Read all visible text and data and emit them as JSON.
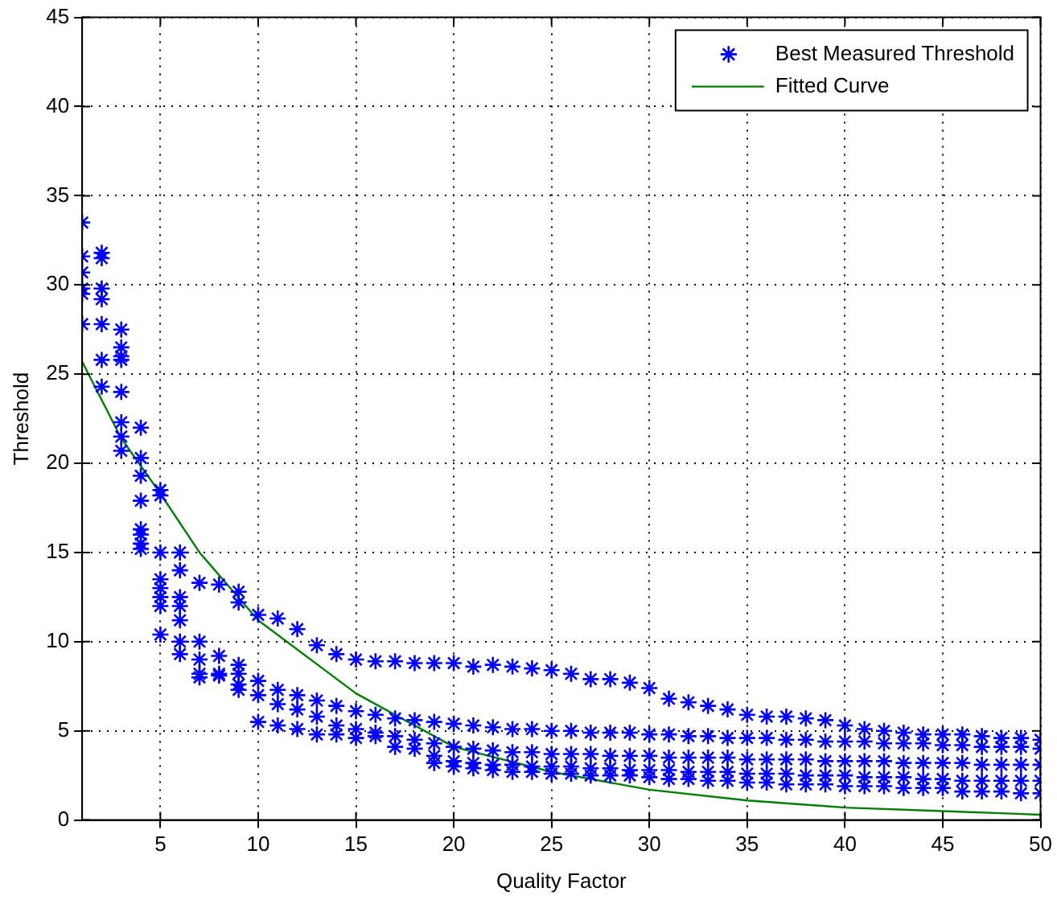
{
  "chart_data": {
    "type": "scatter",
    "xlabel": "Quality Factor",
    "ylabel": "Threshold",
    "xlim": [
      1,
      50
    ],
    "ylim": [
      0,
      45
    ],
    "xticks": [
      5,
      10,
      15,
      20,
      25,
      30,
      35,
      40,
      45,
      50
    ],
    "yticks": [
      0,
      5,
      10,
      15,
      20,
      25,
      30,
      35,
      40,
      45
    ],
    "grid": true,
    "legend": "top right",
    "series": [
      {
        "name": "Best Measured Threshold",
        "type": "scatter",
        "color": "#0000ff",
        "marker": "cross",
        "x": [
          1,
          1,
          1,
          1,
          1,
          1,
          2,
          2,
          2,
          2,
          2,
          2,
          2,
          3,
          3,
          3,
          3,
          3,
          3,
          3,
          3,
          4,
          4,
          4,
          4,
          4,
          4,
          4,
          4,
          5,
          5,
          5,
          5,
          5,
          5,
          5,
          5,
          6,
          6,
          6,
          6,
          6,
          6,
          6,
          7,
          7,
          7,
          7,
          7,
          8,
          8,
          8,
          8,
          9,
          9,
          9,
          9,
          9,
          9,
          10,
          11,
          12,
          13,
          14,
          15,
          16,
          17,
          18,
          19,
          20,
          21,
          22,
          23,
          24,
          25,
          26,
          27,
          28,
          29,
          30,
          31,
          32,
          33,
          34,
          35,
          36,
          37,
          38,
          39,
          40,
          41,
          42,
          43,
          44,
          45,
          46,
          47,
          48,
          49,
          50,
          10,
          11,
          12,
          13,
          14,
          15,
          16,
          17,
          18,
          19,
          20,
          21,
          22,
          23,
          24,
          25,
          26,
          27,
          28,
          29,
          30,
          31,
          32,
          33,
          34,
          35,
          36,
          37,
          38,
          39,
          40,
          41,
          42,
          43,
          44,
          45,
          46,
          47,
          48,
          49,
          50,
          10,
          11,
          12,
          13,
          14,
          15,
          16,
          17,
          18,
          19,
          20,
          21,
          22,
          23,
          24,
          25,
          26,
          27,
          28,
          29,
          30,
          31,
          32,
          33,
          34,
          35,
          36,
          37,
          38,
          39,
          40,
          41,
          42,
          43,
          44,
          45,
          46,
          47,
          48,
          49,
          50,
          10,
          11,
          12,
          13,
          14,
          15,
          16,
          17,
          18,
          19,
          20,
          21,
          22,
          23,
          24,
          25,
          26,
          27,
          28,
          29,
          30,
          31,
          32,
          33,
          34,
          35,
          36,
          37,
          38,
          39,
          40,
          41,
          42,
          43,
          44,
          45,
          46,
          47,
          48,
          49,
          50,
          19,
          20,
          21,
          22,
          23,
          24,
          25,
          26,
          27,
          28,
          29,
          30,
          31,
          32,
          33,
          34,
          35,
          36,
          37,
          38,
          39,
          40,
          41,
          42,
          43,
          44,
          45,
          46,
          47,
          48,
          49,
          50
        ],
        "values": [
          33.5,
          31.6,
          30.7,
          29.8,
          29.5,
          27.8,
          31.8,
          31.5,
          29.8,
          29.2,
          27.8,
          25.8,
          24.3,
          27.5,
          26.5,
          26,
          25.8,
          24,
          22.3,
          21.5,
          20.7,
          22,
          20.3,
          19.3,
          17.9,
          16.3,
          16,
          15.5,
          15.2,
          18.5,
          18.2,
          15,
          13.5,
          13,
          12.5,
          12,
          10.4,
          15,
          14,
          12.5,
          12,
          11.2,
          10,
          9.3,
          13.3,
          10,
          9,
          8.2,
          8,
          13.2,
          9.2,
          8.2,
          8.1,
          12.8,
          12.2,
          8.7,
          8.2,
          7.6,
          7.3,
          11.5,
          11.3,
          10.7,
          9.8,
          9.3,
          9,
          8.9,
          8.9,
          8.8,
          8.8,
          8.8,
          8.6,
          8.7,
          8.6,
          8.5,
          8.4,
          8.2,
          7.9,
          7.9,
          7.7,
          7.4,
          6.8,
          6.6,
          6.4,
          6.2,
          5.9,
          5.8,
          5.8,
          5.7,
          5.6,
          5.3,
          5.1,
          5,
          4.9,
          4.8,
          4.8,
          4.8,
          4.7,
          4.6,
          4.6,
          4.5,
          7.8,
          7.3,
          7,
          6.7,
          6.4,
          6.1,
          5.9,
          5.7,
          5.6,
          5.5,
          5.4,
          5.3,
          5.2,
          5.1,
          5.1,
          5,
          5,
          4.9,
          4.9,
          4.9,
          4.8,
          4.8,
          4.7,
          4.7,
          4.6,
          4.6,
          4.6,
          4.5,
          4.5,
          4.4,
          4.4,
          4.4,
          4.3,
          4.3,
          4.3,
          4.2,
          4.2,
          4.1,
          4.1,
          4.1,
          4,
          7,
          6.5,
          6.2,
          5.8,
          5.3,
          5.1,
          4.9,
          4.7,
          4.5,
          4.3,
          4.1,
          4,
          3.9,
          3.8,
          3.8,
          3.7,
          3.7,
          3.7,
          3.6,
          3.6,
          3.6,
          3.5,
          3.5,
          3.5,
          3.5,
          3.4,
          3.4,
          3.4,
          3.4,
          3.3,
          3.3,
          3.3,
          3.3,
          3.2,
          3.2,
          3.2,
          3.2,
          3.1,
          3.1,
          3.1,
          3.1,
          5.5,
          5.3,
          5.1,
          4.8,
          4.8,
          4.6,
          4.7,
          4.1,
          4,
          3.6,
          3.3,
          3.2,
          3.1,
          3.1,
          3,
          3,
          3,
          2.9,
          2.9,
          2.8,
          2.8,
          2.8,
          2.7,
          2.7,
          2.7,
          2.6,
          2.6,
          2.6,
          2.5,
          2.5,
          2.5,
          2.4,
          2.4,
          2.4,
          2.3,
          2.3,
          2.2,
          2.2,
          2.2,
          2.2,
          2.2,
          3.2,
          3,
          2.9,
          2.8,
          2.7,
          2.7,
          2.6,
          2.6,
          2.5,
          2.5,
          2.5,
          2.4,
          2.3,
          2.3,
          2.2,
          2.2,
          2.1,
          2.1,
          2,
          2,
          2,
          1.9,
          1.9,
          1.9,
          1.8,
          1.8,
          1.8,
          1.6,
          1.6,
          1.6,
          1.5,
          1.5
        ]
      },
      {
        "name": "Fitted Curve",
        "type": "line",
        "color": "#008000",
        "marker": "none",
        "line_style": "solid",
        "x": [
          1,
          3,
          5,
          7,
          10,
          15,
          20,
          25,
          30,
          35,
          40,
          45,
          50
        ],
        "values": [
          25.7,
          21.4,
          18.3,
          15,
          11.2,
          7.1,
          4.1,
          2.7,
          1.7,
          1.1,
          0.7,
          0.5,
          0.3
        ]
      }
    ]
  }
}
